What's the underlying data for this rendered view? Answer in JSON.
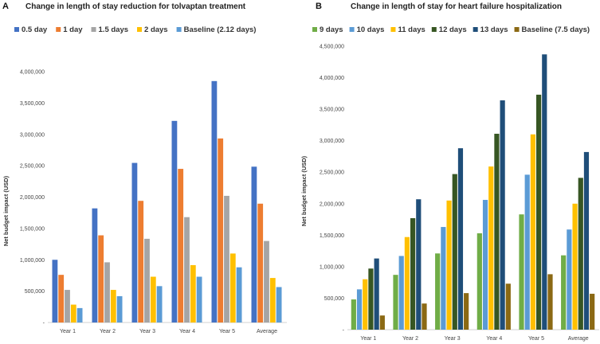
{
  "chart_data": [
    {
      "panel": "A",
      "type": "bar",
      "title": "Change in length of stay reduction for tolvaptan treatment",
      "ylabel": "Net budget impact (USD)",
      "xlabel": "",
      "ylim": [
        0,
        4000000
      ],
      "ytick_values": [
        0,
        500000,
        1000000,
        1500000,
        2000000,
        2500000,
        3000000,
        3500000,
        4000000
      ],
      "ytick_labels": [
        "-",
        "500,000",
        "1,000,000",
        "1,500,000",
        "2,000,000",
        "2,500,000",
        "3,000,000",
        "3,500,000",
        "4,000,000"
      ],
      "categories": [
        "Year 1",
        "Year 2",
        "Year 3",
        "Year 4",
        "Year 5",
        "Average"
      ],
      "legend_position": "top",
      "series": [
        {
          "name": "0.5 day",
          "color": "#4472C4",
          "values": [
            1000000,
            1820000,
            2545000,
            3215000,
            3850000,
            2485000
          ]
        },
        {
          "name": "1 day",
          "color": "#ED7D31",
          "values": [
            760000,
            1390000,
            1940000,
            2450000,
            2935000,
            1895000
          ]
        },
        {
          "name": "1.5 days",
          "color": "#A5A5A5",
          "values": [
            520000,
            960000,
            1335000,
            1680000,
            2020000,
            1300000
          ]
        },
        {
          "name": "2 days",
          "color": "#FFC000",
          "values": [
            285000,
            520000,
            730000,
            915000,
            1100000,
            710000
          ]
        },
        {
          "name": "Baseline (2.12 days)",
          "color": "#5B9BD5",
          "values": [
            230000,
            420000,
            580000,
            730000,
            880000,
            565000
          ]
        }
      ]
    },
    {
      "panel": "B",
      "type": "bar",
      "title": "Change in length of stay for heart failure hospitalization",
      "ylabel": "Net budget impact (USD)",
      "xlabel": "",
      "ylim": [
        0,
        4500000
      ],
      "ytick_values": [
        0,
        500000,
        1000000,
        1500000,
        2000000,
        2500000,
        3000000,
        3500000,
        4000000,
        4500000
      ],
      "ytick_labels": [
        "-",
        "500,000",
        "1,000,000",
        "1,500,000",
        "2,000,000",
        "2,500,000",
        "3,000,000",
        "3,500,000",
        "4,000,000",
        "4,500,000"
      ],
      "categories": [
        "Year 1",
        "Year 2",
        "Year 3",
        "Year 4",
        "Year 5",
        "Average"
      ],
      "legend_position": "top",
      "series": [
        {
          "name": "9 days",
          "color": "#70AD47",
          "values": [
            480000,
            870000,
            1210000,
            1530000,
            1830000,
            1180000
          ]
        },
        {
          "name": "10 days",
          "color": "#5B9BD5",
          "values": [
            640000,
            1170000,
            1630000,
            2060000,
            2460000,
            1590000
          ]
        },
        {
          "name": "11 days",
          "color": "#FFC000",
          "values": [
            800000,
            1470000,
            2050000,
            2590000,
            3100000,
            2000000
          ]
        },
        {
          "name": "12 days",
          "color": "#375623",
          "values": [
            970000,
            1770000,
            2470000,
            3110000,
            3730000,
            2410000
          ]
        },
        {
          "name": "13 days",
          "color": "#1F4E79",
          "values": [
            1130000,
            2070000,
            2880000,
            3640000,
            4370000,
            2820000
          ]
        },
        {
          "name": "Baseline (7.5 days)",
          "color": "#8B6914",
          "values": [
            225000,
            415000,
            580000,
            730000,
            880000,
            570000
          ]
        }
      ]
    }
  ]
}
